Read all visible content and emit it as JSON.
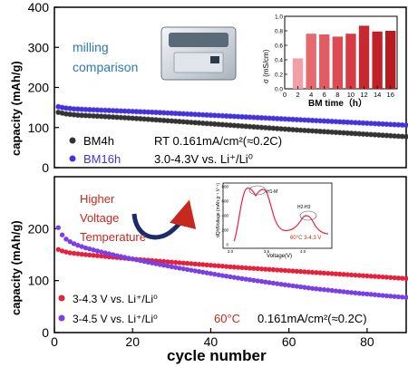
{
  "chart_data": [
    {
      "type": "scatter",
      "panel": "top",
      "ylabel": "capacity (mAh/g)",
      "ylim": [
        0,
        400
      ],
      "yticks": [
        "0",
        "100",
        "200",
        "300",
        "400"
      ],
      "x": [
        1,
        2,
        3,
        4,
        5,
        6,
        7,
        8,
        9,
        10,
        11,
        12,
        13,
        14,
        15,
        16,
        17,
        18,
        19,
        20,
        21,
        22,
        23,
        24,
        25,
        26,
        27,
        28,
        29,
        30,
        31,
        32,
        33,
        34,
        35,
        36,
        37,
        38,
        39,
        40,
        41,
        42,
        43,
        44,
        45,
        46,
        47,
        48,
        49,
        50,
        51,
        52,
        53,
        54,
        55,
        56,
        57,
        58,
        59,
        60,
        61,
        62,
        63,
        64,
        65,
        66,
        67,
        68,
        69,
        70,
        71,
        72,
        73,
        74,
        75,
        76,
        77,
        78,
        79,
        80,
        81,
        82,
        83,
        84,
        85,
        86,
        87,
        88,
        89,
        90
      ],
      "series": [
        {
          "name": "BM4h",
          "color": "#333333",
          "values": [
            138,
            136,
            134,
            133,
            132,
            131,
            130.5,
            130,
            129.5,
            129,
            128.5,
            128,
            127.4,
            126.8,
            126.2,
            125.6,
            125,
            124.4,
            123.8,
            123.2,
            122.6,
            122,
            121.3,
            120.6,
            119.9,
            119.2,
            118.5,
            117.8,
            117.1,
            116.4,
            115.7,
            115,
            114.3,
            113.6,
            112.9,
            112.2,
            111.5,
            110.8,
            110.1,
            109.4,
            108.7,
            108,
            107.3,
            106.6,
            105.9,
            105.2,
            104.5,
            103.8,
            103.1,
            102.4,
            101.7,
            101,
            100.3,
            99.6,
            98.9,
            98.2,
            97.5,
            96.8,
            96.1,
            95.4,
            94.7,
            94,
            93.4,
            92.8,
            92.2,
            91.6,
            91,
            90.4,
            89.8,
            89.2,
            88.6,
            88,
            87.4,
            86.8,
            86.2,
            85.6,
            85,
            84.4,
            83.8,
            83.2,
            82.6,
            82,
            81.4,
            80.8,
            80.2,
            79.6,
            79,
            78.4,
            77.8,
            77.2
          ]
        },
        {
          "name": "BM16h",
          "color": "#4433dd",
          "values": [
            152,
            150,
            148.5,
            147.5,
            146.5,
            146,
            145.5,
            145,
            144.6,
            144.2,
            143.8,
            143.4,
            143,
            142.6,
            142.2,
            141.8,
            141.4,
            141,
            140.6,
            140.2,
            139.8,
            139.4,
            139,
            138.6,
            138.2,
            137.8,
            137.3,
            136.8,
            136.3,
            135.8,
            135.3,
            134.8,
            134.3,
            133.8,
            133.3,
            132.8,
            132.3,
            131.8,
            131.3,
            130.8,
            130.3,
            129.8,
            129.3,
            128.8,
            128.3,
            127.8,
            127.3,
            126.8,
            126.3,
            125.8,
            125.3,
            124.8,
            124.3,
            123.8,
            123.3,
            122.8,
            122.3,
            121.8,
            121.3,
            120.8,
            120.3,
            119.8,
            119.3,
            118.8,
            118.3,
            117.8,
            117.3,
            116.8,
            116.3,
            115.8,
            115.3,
            114.8,
            114.3,
            113.8,
            113.3,
            112.8,
            112.3,
            111.8,
            111.3,
            110.8,
            110.3,
            109.8,
            109.3,
            108.8,
            108.3,
            107.8,
            107.3,
            106.8,
            106.3,
            105.8
          ]
        }
      ],
      "legend": [
        {
          "marker": "BM4h",
          "condition": "RT 0.161mA/cm²(≈0.2C)"
        },
        {
          "marker": "BM16h",
          "condition": "3.0-4.3V vs. Li⁺/Li⁰"
        }
      ],
      "annotation": "milling\ncomparison",
      "inset": {
        "type": "bar",
        "xlabel": "BM time（h）",
        "ylabel": "σ (mS/cm)",
        "categories": [
          "2",
          "4",
          "6",
          "8",
          "10",
          "12",
          "14",
          "16"
        ],
        "xticks": [
          "0",
          "2",
          "4",
          "6",
          "8",
          "10",
          "12",
          "14",
          "16"
        ],
        "values": [
          0.42,
          0.76,
          0.75,
          0.72,
          0.76,
          0.87,
          0.79,
          0.8
        ],
        "ylim": [
          0,
          1.0
        ],
        "yticks": [
          "0.0",
          "0.2",
          "0.4",
          "0.6",
          "0.8",
          "1.0"
        ],
        "colors": [
          "#f2a0a8",
          "#e86870",
          "#e25a62",
          "#dc4a52",
          "#d63a42",
          "#c82830",
          "#c02028",
          "#b81a22"
        ]
      }
    },
    {
      "type": "scatter",
      "panel": "bottom",
      "xlabel": "cycle number",
      "ylabel": "capacity (mAh/g)",
      "xlim": [
        0,
        90
      ],
      "ylim": [
        0,
        300
      ],
      "xticks": [
        "0",
        "20",
        "40",
        "60",
        "80"
      ],
      "yticks": [
        "0",
        "100",
        "200"
      ],
      "x": [
        1,
        2,
        3,
        4,
        5,
        6,
        7,
        8,
        9,
        10,
        11,
        12,
        13,
        14,
        15,
        16,
        17,
        18,
        19,
        20,
        21,
        22,
        23,
        24,
        25,
        26,
        27,
        28,
        29,
        30,
        31,
        32,
        33,
        34,
        35,
        36,
        37,
        38,
        39,
        40,
        41,
        42,
        43,
        44,
        45,
        46,
        47,
        48,
        49,
        50,
        51,
        52,
        53,
        54,
        55,
        56,
        57,
        58,
        59,
        60,
        61,
        62,
        63,
        64,
        65,
        66,
        67,
        68,
        69,
        70,
        71,
        72,
        73,
        74,
        75,
        76,
        77,
        78,
        79,
        80,
        81,
        82,
        83,
        84,
        85,
        86,
        87,
        88,
        89,
        90
      ],
      "series": [
        {
          "name": "3-4.3 V vs. Li⁺/Li⁰",
          "color": "#e8213a",
          "values": [
            160,
            157,
            155,
            153.5,
            152.5,
            151.6,
            150.8,
            150,
            149.3,
            148.6,
            147.9,
            147.2,
            146.5,
            145.8,
            145.1,
            144.4,
            143.7,
            143,
            142.3,
            141.6,
            141,
            140.4,
            139.8,
            139.2,
            138.6,
            138,
            137.4,
            136.8,
            136.2,
            135.6,
            135,
            134.4,
            133.8,
            133.2,
            132.6,
            132,
            131.4,
            130.8,
            130.2,
            129.6,
            129,
            128.4,
            127.8,
            127.2,
            126.6,
            126,
            125.5,
            125,
            124.5,
            124,
            123.5,
            123,
            122.5,
            122,
            121.5,
            121,
            120.5,
            120,
            119.5,
            119,
            118.5,
            118,
            117.5,
            117,
            116.5,
            116,
            115.5,
            115,
            114.5,
            114,
            113.5,
            113,
            112.5,
            112,
            111.5,
            111,
            110.5,
            110,
            109.5,
            109,
            108.5,
            108,
            107.5,
            107,
            106.5,
            106,
            105.5,
            105,
            104.5,
            104
          ]
        },
        {
          "name": "3-4.5 V vs. Li⁺/Li⁰",
          "color": "#7a3fe6",
          "values": [
            202,
            188,
            180,
            175,
            171,
            168,
            165.5,
            163,
            161,
            159,
            157,
            155.2,
            153.4,
            151.6,
            149.8,
            148,
            146.4,
            144.8,
            143.2,
            141.6,
            140,
            138.5,
            137,
            135.5,
            134,
            132.5,
            131,
            129.6,
            128.2,
            126.8,
            125.4,
            124,
            122.7,
            121.4,
            120.1,
            118.8,
            117.5,
            116.2,
            114.9,
            113.6,
            112.3,
            111,
            109.8,
            108.6,
            107.4,
            106.2,
            105,
            103.9,
            102.8,
            101.7,
            100.6,
            99.5,
            98.4,
            97.3,
            96.2,
            95.1,
            94,
            93,
            92,
            91,
            90,
            89,
            88,
            87,
            86,
            85,
            84.2,
            83.4,
            82.6,
            81.8,
            81,
            80.2,
            79.4,
            78.6,
            77.8,
            77,
            76.3,
            75.6,
            74.9,
            74.2,
            73.5,
            72.8,
            72.1,
            71.4,
            70.7,
            70,
            69.4,
            68.8,
            68.2,
            67.6
          ]
        }
      ],
      "conditions": [
        "60°C",
        "0.161mA/cm²(≈0.2C)"
      ],
      "annotation": [
        "Higher",
        "Voltage",
        "Temperature"
      ],
      "inset": {
        "ylabel": "dQ/dVoltage (mAh g⁻¹ V⁻¹)",
        "xlabel": "Voltage(V)",
        "xticks": [
          "3.0",
          "3.5",
          "4.0"
        ],
        "yticks": [
          "0",
          "200",
          "400",
          "600",
          "800"
        ],
        "labels": [
          "H1-M",
          "H2-H3"
        ],
        "legend": "60°C 3-4.3 V"
      }
    }
  ]
}
